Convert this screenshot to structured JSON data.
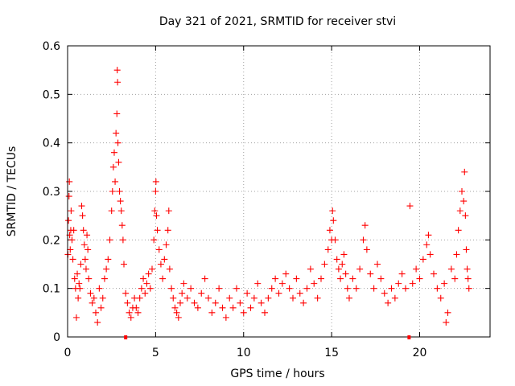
{
  "chart_data": {
    "type": "scatter",
    "title": "Day 321 of 2021, SRMTID for receiver stvi",
    "xlabel": "GPS time / hours",
    "ylabel": "SRMTID / TECUs",
    "xlim": [
      0,
      24
    ],
    "ylim": [
      0,
      0.6
    ],
    "xticks": [
      0,
      5,
      10,
      15,
      20
    ],
    "xtick_labels": [
      "0",
      "5",
      "10",
      "15",
      "20"
    ],
    "yticks": [
      0,
      0.1,
      0.2,
      0.3,
      0.4,
      0.5,
      0.6
    ],
    "ytick_labels": [
      "0",
      "0.1",
      "0.2",
      "0.3",
      "0.4",
      "0.5",
      "0.6"
    ],
    "grid": true,
    "legend": "none",
    "color": "#ff0000",
    "series": [
      {
        "name": "SRMTID",
        "points": [
          [
            0.02,
            0.17
          ],
          [
            0.05,
            0.24
          ],
          [
            0.08,
            0.29
          ],
          [
            0.1,
            0.32
          ],
          [
            0.12,
            0.21
          ],
          [
            0.15,
            0.18
          ],
          [
            0.18,
            0.22
          ],
          [
            0.2,
            0.26
          ],
          [
            0.25,
            0.2
          ],
          [
            0.3,
            0.16
          ],
          [
            0.35,
            0.22
          ],
          [
            0.4,
            0.12
          ],
          [
            0.45,
            0.1
          ],
          [
            0.5,
            0.04
          ],
          [
            0.55,
            0.13
          ],
          [
            0.6,
            0.08
          ],
          [
            0.65,
            0.11
          ],
          [
            0.7,
            0.1
          ],
          [
            0.75,
            0.15
          ],
          [
            0.8,
            0.27
          ],
          [
            0.85,
            0.25
          ],
          [
            0.9,
            0.22
          ],
          [
            0.95,
            0.19
          ],
          [
            1.0,
            0.16
          ],
          [
            1.05,
            0.14
          ],
          [
            1.1,
            0.21
          ],
          [
            1.15,
            0.18
          ],
          [
            1.2,
            0.12
          ],
          [
            1.3,
            0.09
          ],
          [
            1.4,
            0.07
          ],
          [
            1.5,
            0.08
          ],
          [
            1.6,
            0.05
          ],
          [
            1.7,
            0.03
          ],
          [
            1.8,
            0.1
          ],
          [
            1.9,
            0.06
          ],
          [
            2.0,
            0.08
          ],
          [
            2.1,
            0.12
          ],
          [
            2.2,
            0.14
          ],
          [
            2.3,
            0.16
          ],
          [
            2.4,
            0.2
          ],
          [
            2.5,
            0.26
          ],
          [
            2.55,
            0.3
          ],
          [
            2.6,
            0.35
          ],
          [
            2.65,
            0.38
          ],
          [
            2.7,
            0.32
          ],
          [
            2.75,
            0.42
          ],
          [
            2.8,
            0.46
          ],
          [
            2.82,
            0.55
          ],
          [
            2.84,
            0.525
          ],
          [
            2.86,
            0.4
          ],
          [
            2.9,
            0.36
          ],
          [
            2.95,
            0.3
          ],
          [
            3.0,
            0.28
          ],
          [
            3.05,
            0.26
          ],
          [
            3.1,
            0.23
          ],
          [
            3.15,
            0.2
          ],
          [
            3.2,
            0.15
          ],
          [
            3.3,
            0.09
          ],
          [
            3.4,
            0.07
          ],
          [
            3.5,
            0.05
          ],
          [
            3.6,
            0.04
          ],
          [
            3.7,
            0.06
          ],
          [
            3.8,
            0.08
          ],
          [
            3.9,
            0.06
          ],
          [
            4.0,
            0.05
          ],
          [
            4.1,
            0.08
          ],
          [
            4.2,
            0.1
          ],
          [
            4.3,
            0.12
          ],
          [
            4.4,
            0.09
          ],
          [
            4.5,
            0.11
          ],
          [
            4.6,
            0.13
          ],
          [
            4.7,
            0.1
          ],
          [
            4.8,
            0.14
          ],
          [
            4.9,
            0.2
          ],
          [
            4.95,
            0.26
          ],
          [
            5.0,
            0.3
          ],
          [
            5.02,
            0.32
          ],
          [
            5.05,
            0.25
          ],
          [
            5.1,
            0.22
          ],
          [
            5.2,
            0.18
          ],
          [
            5.3,
            0.15
          ],
          [
            5.4,
            0.12
          ],
          [
            5.5,
            0.16
          ],
          [
            5.6,
            0.19
          ],
          [
            5.7,
            0.22
          ],
          [
            5.75,
            0.26
          ],
          [
            5.8,
            0.14
          ],
          [
            5.9,
            0.1
          ],
          [
            6.0,
            0.08
          ],
          [
            6.1,
            0.06
          ],
          [
            6.2,
            0.05
          ],
          [
            6.3,
            0.04
          ],
          [
            6.4,
            0.07
          ],
          [
            6.5,
            0.09
          ],
          [
            6.6,
            0.11
          ],
          [
            6.8,
            0.08
          ],
          [
            7.0,
            0.1
          ],
          [
            7.2,
            0.07
          ],
          [
            7.4,
            0.06
          ],
          [
            7.6,
            0.09
          ],
          [
            7.8,
            0.12
          ],
          [
            8.0,
            0.08
          ],
          [
            8.2,
            0.05
          ],
          [
            8.4,
            0.07
          ],
          [
            8.6,
            0.1
          ],
          [
            8.8,
            0.06
          ],
          [
            9.0,
            0.04
          ],
          [
            9.2,
            0.08
          ],
          [
            9.4,
            0.06
          ],
          [
            9.6,
            0.1
          ],
          [
            9.8,
            0.07
          ],
          [
            10.0,
            0.05
          ],
          [
            10.2,
            0.09
          ],
          [
            10.4,
            0.06
          ],
          [
            10.6,
            0.08
          ],
          [
            10.8,
            0.11
          ],
          [
            11.0,
            0.07
          ],
          [
            11.2,
            0.05
          ],
          [
            11.4,
            0.08
          ],
          [
            11.6,
            0.1
          ],
          [
            11.8,
            0.12
          ],
          [
            12.0,
            0.09
          ],
          [
            12.2,
            0.11
          ],
          [
            12.4,
            0.13
          ],
          [
            12.6,
            0.1
          ],
          [
            12.8,
            0.08
          ],
          [
            13.0,
            0.12
          ],
          [
            13.2,
            0.09
          ],
          [
            13.4,
            0.07
          ],
          [
            13.6,
            0.1
          ],
          [
            13.8,
            0.14
          ],
          [
            14.0,
            0.11
          ],
          [
            14.2,
            0.08
          ],
          [
            14.4,
            0.12
          ],
          [
            14.6,
            0.15
          ],
          [
            14.8,
            0.18
          ],
          [
            14.9,
            0.22
          ],
          [
            15.0,
            0.2
          ],
          [
            15.05,
            0.26
          ],
          [
            15.1,
            0.24
          ],
          [
            15.2,
            0.2
          ],
          [
            15.3,
            0.16
          ],
          [
            15.4,
            0.14
          ],
          [
            15.5,
            0.12
          ],
          [
            15.6,
            0.15
          ],
          [
            15.7,
            0.17
          ],
          [
            15.8,
            0.13
          ],
          [
            15.9,
            0.1
          ],
          [
            16.0,
            0.08
          ],
          [
            16.2,
            0.12
          ],
          [
            16.4,
            0.1
          ],
          [
            16.6,
            0.14
          ],
          [
            16.8,
            0.2
          ],
          [
            16.9,
            0.23
          ],
          [
            17.0,
            0.18
          ],
          [
            17.2,
            0.13
          ],
          [
            17.4,
            0.1
          ],
          [
            17.6,
            0.15
          ],
          [
            17.8,
            0.12
          ],
          [
            18.0,
            0.09
          ],
          [
            18.2,
            0.07
          ],
          [
            18.4,
            0.1
          ],
          [
            18.6,
            0.08
          ],
          [
            18.8,
            0.11
          ],
          [
            19.0,
            0.13
          ],
          [
            19.2,
            0.1
          ],
          [
            19.45,
            0.27
          ],
          [
            19.6,
            0.11
          ],
          [
            19.8,
            0.14
          ],
          [
            20.0,
            0.12
          ],
          [
            20.2,
            0.16
          ],
          [
            20.4,
            0.19
          ],
          [
            20.5,
            0.21
          ],
          [
            20.6,
            0.17
          ],
          [
            20.8,
            0.13
          ],
          [
            21.0,
            0.1
          ],
          [
            21.2,
            0.08
          ],
          [
            21.4,
            0.11
          ],
          [
            21.5,
            0.03
          ],
          [
            21.6,
            0.05
          ],
          [
            21.8,
            0.14
          ],
          [
            22.0,
            0.12
          ],
          [
            22.1,
            0.17
          ],
          [
            22.2,
            0.22
          ],
          [
            22.3,
            0.26
          ],
          [
            22.4,
            0.3
          ],
          [
            22.5,
            0.28
          ],
          [
            22.55,
            0.34
          ],
          [
            22.6,
            0.25
          ],
          [
            22.65,
            0.18
          ],
          [
            22.7,
            0.14
          ],
          [
            22.75,
            0.12
          ],
          [
            22.8,
            0.1
          ]
        ]
      }
    ],
    "axis_markers": [
      3.3,
      19.4
    ]
  }
}
